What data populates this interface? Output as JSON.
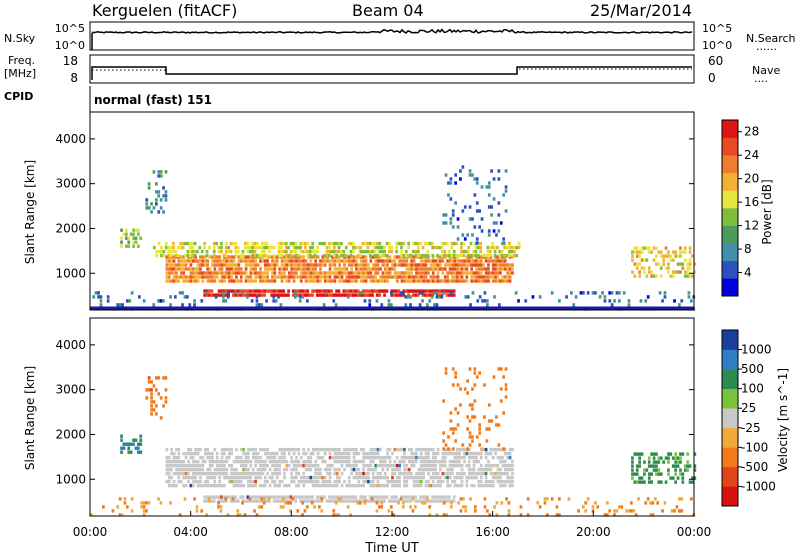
{
  "header": {
    "station": "Kerguelen (fitACF)",
    "beam": "Beam 04",
    "date": "25/Mar/2014"
  },
  "summary_panels": {
    "nsky": {
      "left_label": "N.Sky",
      "right_label": "N.Search",
      "right_legend": "......",
      "left_ticks": [
        "10^5",
        "10^0"
      ],
      "right_ticks": [
        "10^5",
        "10^0"
      ]
    },
    "freq": {
      "left_label_line1": "Freq.",
      "left_label_line2": "[MHz]",
      "left_ticks": [
        "18",
        "8"
      ],
      "right_label": "Nave",
      "right_legend": "....",
      "right_ticks": [
        "60",
        "0"
      ]
    },
    "cpid": {
      "label": "CPID",
      "value": "normal (fast) 151"
    }
  },
  "colors": {
    "axis": "#000000",
    "ground_line": "#1a1a9e",
    "ground_scatter": "#a0a0a0"
  },
  "chart_data": [
    {
      "type": "heatmap",
      "name": "power",
      "ylabel": "Slant Range [km]",
      "ylim": [
        180,
        4600
      ],
      "yticks": [
        "1000",
        "2000",
        "3000",
        "4000"
      ],
      "ytick_values": [
        1000,
        2000,
        3000,
        4000
      ],
      "xlim_hours": [
        0,
        24
      ],
      "colorbar": {
        "label": "Power [dB]",
        "ticks": [
          "4",
          "8",
          "12",
          "16",
          "20",
          "24",
          "28"
        ],
        "tick_values": [
          4,
          8,
          12,
          16,
          20,
          24,
          28
        ],
        "range": [
          0,
          30
        ],
        "colors": [
          "#0000dd",
          "#2a52be",
          "#3f8fa8",
          "#4e9a5e",
          "#7dbf3d",
          "#e6e63c",
          "#f2b134",
          "#f07d2e",
          "#ea4a22",
          "#dd1414"
        ]
      },
      "features": [
        {
          "t0": 4.5,
          "t1": 14.5,
          "r0": 500,
          "r1": 640,
          "level": 28,
          "density": 0.9
        },
        {
          "t0": 3.0,
          "t1": 16.8,
          "r0": 820,
          "r1": 1400,
          "level": 22,
          "density": 0.85
        },
        {
          "t0": 2.5,
          "t1": 17.0,
          "r0": 1420,
          "r1": 1700,
          "level": 16,
          "density": 0.6
        },
        {
          "t0": 1.2,
          "t1": 2.0,
          "r0": 1600,
          "r1": 2000,
          "level": 14,
          "density": 0.6
        },
        {
          "t0": 2.2,
          "t1": 3.0,
          "r0": 2400,
          "r1": 3300,
          "level": 8,
          "density": 0.25
        },
        {
          "t0": 14.0,
          "t1": 16.5,
          "r0": 1700,
          "r1": 3500,
          "level": 6,
          "density": 0.12
        },
        {
          "t0": 21.5,
          "t1": 24.0,
          "r0": 900,
          "r1": 1600,
          "level": 18,
          "density": 0.5
        },
        {
          "t0": 0.0,
          "t1": 24.0,
          "r0": 180,
          "r1": 600,
          "level": 6,
          "density": 0.15
        }
      ]
    },
    {
      "type": "heatmap",
      "name": "velocity",
      "ylabel": "Slant Range [km]",
      "xlabel": "Time UT",
      "ylim": [
        180,
        4600
      ],
      "yticks": [
        "1000",
        "2000",
        "3000",
        "4000"
      ],
      "ytick_values": [
        1000,
        2000,
        3000,
        4000
      ],
      "xlim_hours": [
        0,
        24
      ],
      "xticks": [
        "00:00",
        "04:00",
        "08:00",
        "12:00",
        "16:00",
        "20:00",
        "00:00"
      ],
      "xtick_values": [
        0,
        4,
        8,
        12,
        16,
        20,
        24
      ],
      "colorbar": {
        "label": "Velocity [m s^-1]",
        "ticks": [
          "1000",
          "500",
          "100",
          "25",
          "-25",
          "-100",
          "-500",
          "-1000"
        ],
        "tick_values": [
          1000,
          500,
          100,
          25,
          -25,
          -100,
          -500,
          -1000
        ],
        "colors": [
          "#1b3f9e",
          "#2f7fc4",
          "#2f8a4e",
          "#7ac23b",
          "#c8c8c8",
          "#f2a93c",
          "#f07a1c",
          "#e04418",
          "#d81010"
        ]
      },
      "features": [
        {
          "t0": 4.5,
          "t1": 14.5,
          "r0": 500,
          "r1": 640,
          "level": 0,
          "density": 0.9
        },
        {
          "t0": 3.0,
          "t1": 16.8,
          "r0": 820,
          "r1": 1700,
          "level": 0,
          "density": 0.7
        },
        {
          "t0": 1.2,
          "t1": 2.0,
          "r0": 1600,
          "r1": 2000,
          "level": 300,
          "density": 0.5
        },
        {
          "t0": 2.2,
          "t1": 3.0,
          "r0": 2400,
          "r1": 3300,
          "level": -200,
          "density": 0.3
        },
        {
          "t0": 14.0,
          "t1": 16.5,
          "r0": 1700,
          "r1": 3500,
          "level": -150,
          "density": 0.15
        },
        {
          "t0": 21.5,
          "t1": 24.0,
          "r0": 900,
          "r1": 1600,
          "level": 100,
          "density": 0.45
        },
        {
          "t0": 0.0,
          "t1": 24.0,
          "r0": 180,
          "r1": 600,
          "level": -60,
          "density": 0.15
        }
      ]
    }
  ]
}
